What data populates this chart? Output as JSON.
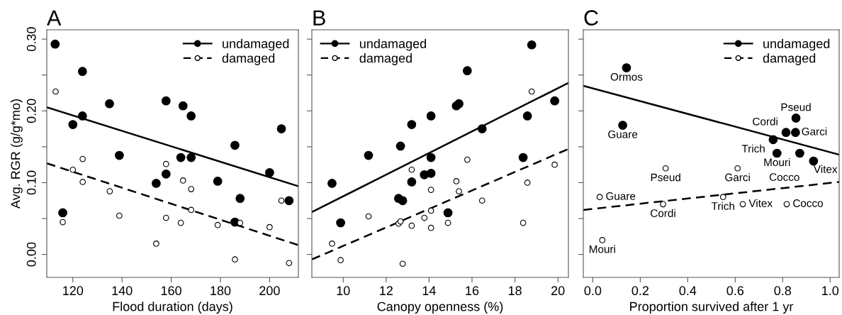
{
  "chart_data": [
    {
      "type": "scatter",
      "title": "A",
      "xlabel": "Flood duration (days)",
      "ylabel": "Avg. RGR (g/g*mo)",
      "xlim": [
        109.4,
        211.7
      ],
      "ylim": [
        -0.032,
        0.313
      ],
      "xticks": [
        120,
        140,
        160,
        180,
        200
      ],
      "yticks": [
        {
          "value": 0,
          "label": "0.00"
        },
        {
          "value": 0.05,
          "label": null
        },
        {
          "value": 0.1,
          "label": "0.10"
        },
        {
          "value": 0.15,
          "label": null
        },
        {
          "value": 0.2,
          "label": "0.20"
        },
        {
          "value": 0.25,
          "label": null
        },
        {
          "value": 0.3,
          "label": "0.30"
        }
      ],
      "legend": "top right",
      "grid": false,
      "series": [
        {
          "name": "undamaged",
          "marker": "circle",
          "color": "#000000",
          "x": [
            112.8,
            115.9,
            120,
            123.9,
            123.9,
            134.9,
            138.9,
            153.9,
            157.9,
            157.9,
            163.9,
            164.8,
            168.1,
            168.1,
            178.9,
            185.9,
            185.9,
            188,
            200,
            204.8,
            207.9
          ],
          "values": [
            0.293,
            0.058,
            0.181,
            0.255,
            0.193,
            0.21,
            0.138,
            0.099,
            0.214,
            0.112,
            0.135,
            0.207,
            0.193,
            0.135,
            0.102,
            0.152,
            0.045,
            0.078,
            0.114,
            0.175,
            0.075
          ]
        },
        {
          "name": "damaged",
          "marker": "circle",
          "color": "#ffffff",
          "x": [
            113,
            115.9,
            120,
            124,
            124,
            135,
            138.9,
            153.9,
            157.9,
            157.9,
            163.9,
            164.8,
            168.1,
            168.1,
            178.9,
            185.9,
            188,
            200,
            204.8,
            207.9
          ],
          "values": [
            0.227,
            0.045,
            0.118,
            0.133,
            0.101,
            0.088,
            0.054,
            0.015,
            0.126,
            0.051,
            0.044,
            0.103,
            0.091,
            0.062,
            0.041,
            -0.007,
            0.044,
            0.038,
            0.075,
            -0.012
          ]
        },
        {
          "type": "line",
          "line_style": "solid",
          "color": "#000000",
          "x": [
            109.4,
            211.7
          ],
          "values": [
            0.205,
            0.095
          ]
        },
        {
          "type": "line",
          "line_style": "dashed",
          "color": "#000000",
          "x": [
            109.4,
            211.7
          ],
          "values": [
            0.127,
            0.013
          ]
        }
      ]
    },
    {
      "type": "scatter",
      "title": "B",
      "xlabel": "Canopy openness (%)",
      "xlim": [
        8.54,
        20.49
      ],
      "ylim": [
        -0.032,
        0.313
      ],
      "xticks": [
        10,
        12,
        14,
        16,
        18,
        20
      ],
      "yticks": [
        0,
        0.05,
        0.1,
        0.15,
        0.2,
        0.25,
        0.3
      ],
      "tick_labels": "x",
      "legend": "top left",
      "grid": false,
      "series": [
        {
          "name": "undamaged",
          "marker": "circle",
          "color": "#000000",
          "x": [
            9.48,
            9.88,
            11.18,
            12.58,
            12.77,
            12.67,
            13.19,
            13.19,
            13.78,
            14.09,
            14.09,
            14.09,
            14.88,
            15.27,
            15.39,
            15.78,
            16.47,
            18.38,
            18.58,
            18.78,
            19.85
          ],
          "values": [
            0.099,
            0.044,
            0.138,
            0.078,
            0.075,
            0.151,
            0.181,
            0.101,
            0.111,
            0.193,
            0.135,
            0.113,
            0.058,
            0.207,
            0.21,
            0.256,
            0.175,
            0.135,
            0.193,
            0.292,
            0.214
          ]
        },
        {
          "name": "damaged",
          "marker": "circle",
          "color": "#ffffff",
          "x": [
            9.48,
            9.88,
            11.18,
            12.58,
            12.67,
            12.77,
            13.19,
            13.19,
            13.78,
            14.09,
            14.09,
            14.09,
            14.88,
            15.27,
            15.39,
            15.78,
            16.47,
            18.38,
            18.58,
            18.78,
            19.85
          ],
          "values": [
            0.015,
            -0.008,
            0.053,
            0.043,
            0.046,
            -0.013,
            0.118,
            0.04,
            0.051,
            0.09,
            0.061,
            0.037,
            0.044,
            0.102,
            0.088,
            0.132,
            0.075,
            0.044,
            0.1,
            0.227,
            0.125
          ]
        },
        {
          "type": "line",
          "line_style": "solid",
          "color": "#000000",
          "x": [
            8.54,
            20.49
          ],
          "values": [
            0.059,
            0.239
          ]
        },
        {
          "type": "line",
          "line_style": "dashed",
          "color": "#000000",
          "x": [
            8.54,
            20.49
          ],
          "values": [
            -0.007,
            0.147
          ]
        }
      ]
    },
    {
      "type": "scatter",
      "title": "C",
      "xlabel": "Proportion survived after 1 yr",
      "xlim": [
        -0.04,
        1.038
      ],
      "ylim": [
        -0.032,
        0.313
      ],
      "xticks": [
        {
          "value": 0,
          "label": "0.0"
        },
        {
          "value": 0.2,
          "label": "0.2"
        },
        {
          "value": 0.4,
          "label": "0.4"
        },
        {
          "value": 0.6,
          "label": "0.6"
        },
        {
          "value": 0.8,
          "label": "0.8"
        },
        {
          "value": 1,
          "label": "1.0"
        }
      ],
      "yticks": [
        0,
        0.05,
        0.1,
        0.15,
        0.2,
        0.25,
        0.3
      ],
      "tick_labels": "x",
      "legend": "top right",
      "grid": false,
      "series": [
        {
          "name": "undamaged",
          "marker": "circle",
          "color": "#000000",
          "x": [
            0.142,
            0.126,
            0.856,
            0.814,
            0.854,
            0.76,
            0.776,
            0.872,
            0.93
          ],
          "values": [
            0.26,
            0.18,
            0.19,
            0.17,
            0.17,
            0.16,
            0.141,
            0.141,
            0.13
          ]
        },
        {
          "name": "damaged",
          "marker": "circle",
          "color": "#ffffff",
          "x": [
            0.029,
            0.04,
            0.307,
            0.296,
            0.61,
            0.549,
            0.632,
            0.817
          ],
          "values": [
            0.08,
            0.02,
            0.12,
            0.07,
            0.12,
            0.08,
            0.07,
            0.07
          ]
        },
        {
          "type": "line",
          "line_style": "solid",
          "color": "#000000",
          "x": [
            -0.04,
            1.038
          ],
          "values": [
            0.235,
            0.139
          ]
        },
        {
          "type": "line",
          "line_style": "dashed",
          "color": "#000000",
          "x": [
            -0.04,
            1.038
          ],
          "values": [
            0.062,
            0.101
          ]
        }
      ],
      "annotations": [
        {
          "text": "Ormos",
          "x": 0.142,
          "y": 0.26
        },
        {
          "text": "Guare",
          "x": 0.126,
          "y": 0.18
        },
        {
          "text": "Pseud",
          "x": 0.856,
          "y": 0.19
        },
        {
          "text": "Cordi",
          "x": 0.814,
          "y": 0.17
        },
        {
          "text": "Garci",
          "x": 0.854,
          "y": 0.17
        },
        {
          "text": "Trich",
          "x": 0.76,
          "y": 0.16
        },
        {
          "text": "Mouri",
          "x": 0.776,
          "y": 0.141
        },
        {
          "text": "Vitex",
          "x": 0.872,
          "y": 0.141
        },
        {
          "text": "Cocco",
          "x": 0.93,
          "y": 0.13
        },
        {
          "text": "Guare",
          "x": 0.029,
          "y": 0.08
        },
        {
          "text": "Mouri",
          "x": 0.04,
          "y": 0.02
        },
        {
          "text": "Pseud",
          "x": 0.307,
          "y": 0.12
        },
        {
          "text": "Cordi",
          "x": 0.296,
          "y": 0.07
        },
        {
          "text": "Garci",
          "x": 0.61,
          "y": 0.12
        },
        {
          "text": "Trich",
          "x": 0.549,
          "y": 0.08
        },
        {
          "text": "Vitex",
          "x": 0.632,
          "y": 0.07
        },
        {
          "text": "Cocco",
          "x": 0.817,
          "y": 0.07
        }
      ]
    }
  ]
}
